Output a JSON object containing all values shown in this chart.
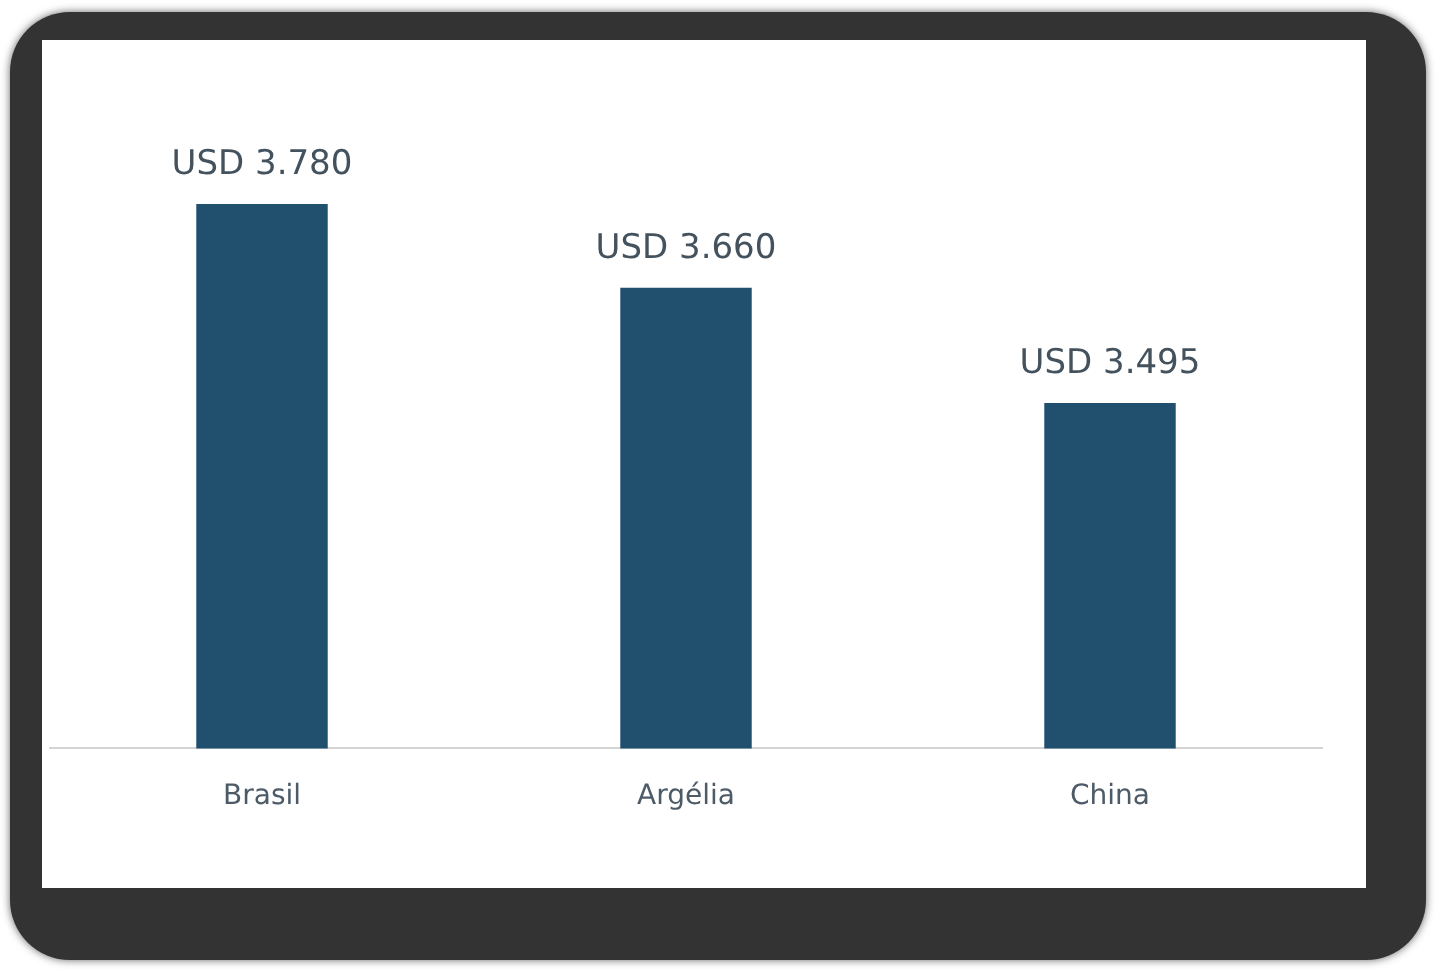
{
  "chart_data": {
    "type": "bar",
    "categories": [
      "Brasil",
      "Argélia",
      "China"
    ],
    "values": [
      3780,
      3660,
      3495
    ],
    "value_labels": [
      "USD 3.780",
      "USD 3.660",
      "USD 3.495"
    ],
    "color": "#21506f",
    "ylim": [
      3000,
      3780
    ],
    "tick_labels": "x"
  }
}
